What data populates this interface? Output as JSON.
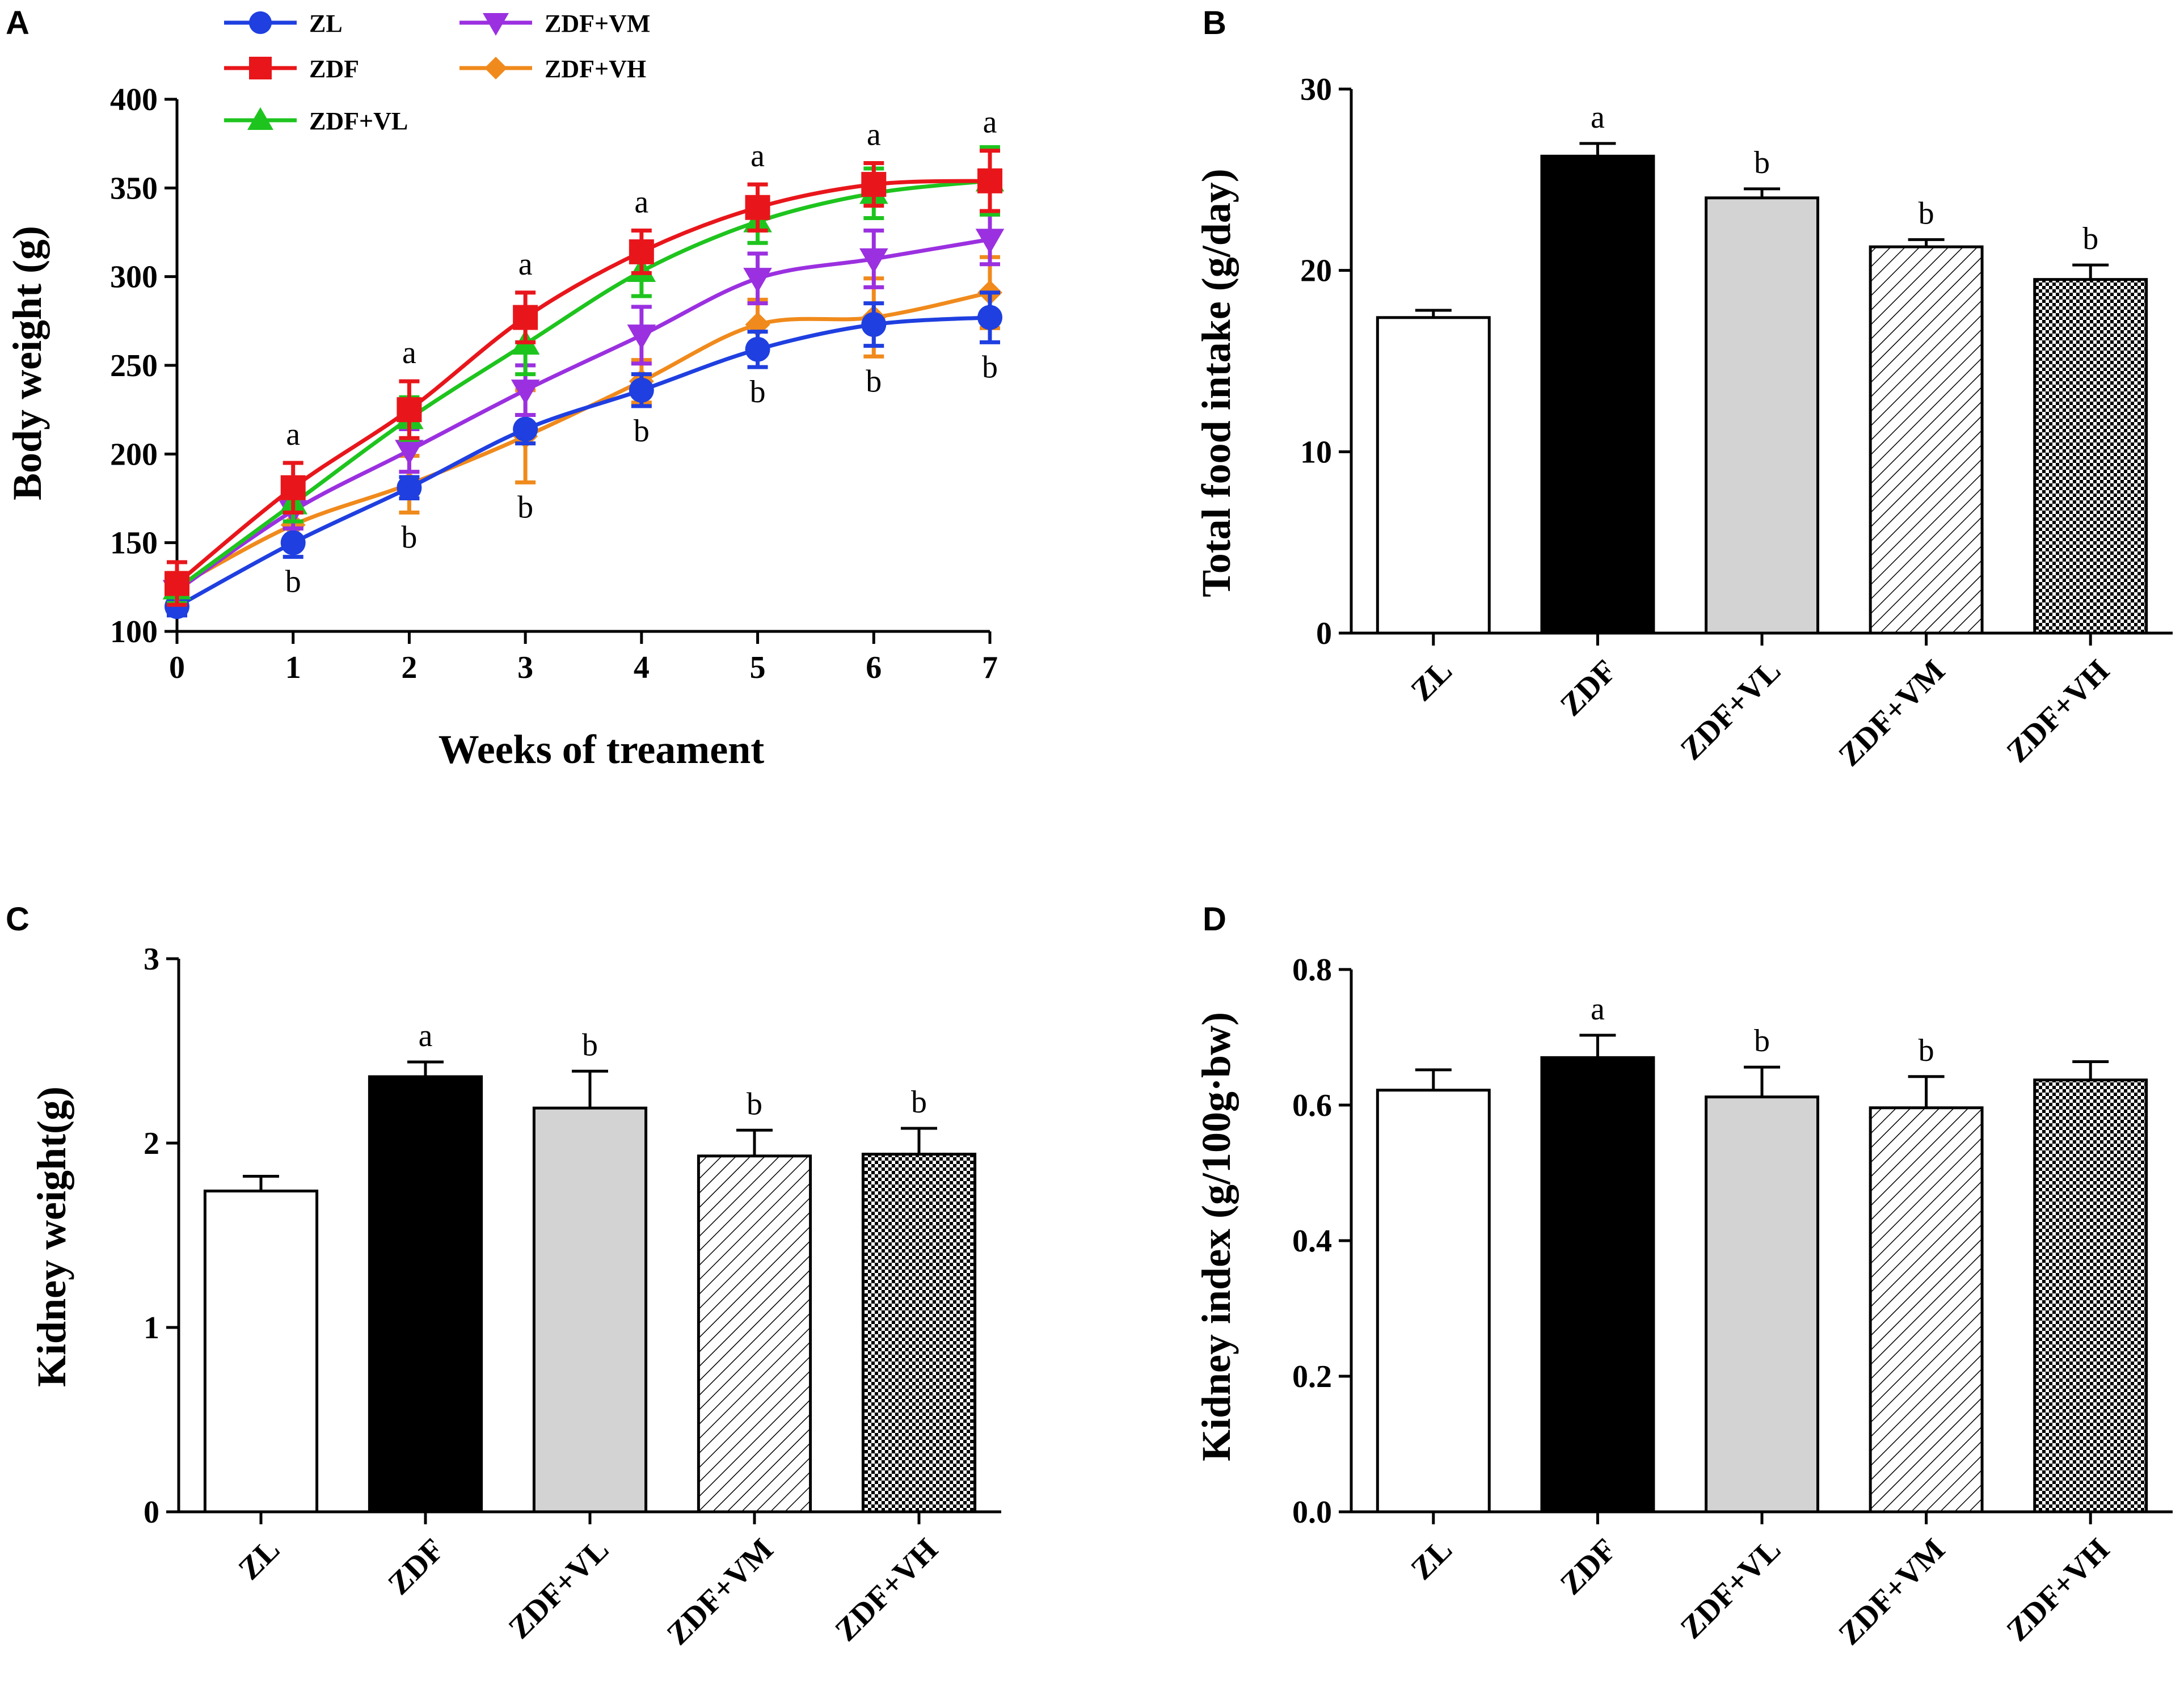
{
  "chart_data": [
    {
      "panel": "A",
      "type": "line",
      "title": "",
      "xlabel": "Weeks of treament",
      "ylabel": "Body weight (g)",
      "x": [
        0,
        1,
        2,
        3,
        4,
        5,
        6,
        7
      ],
      "xlim": [
        0,
        7
      ],
      "ylim": [
        100,
        400
      ],
      "yticks": [
        100,
        150,
        200,
        250,
        300,
        350,
        400
      ],
      "grid": false,
      "legend_position": "top-left",
      "series": [
        {
          "name": "ZL",
          "color": "#1f3fe0",
          "marker": "circle",
          "values": [
            114,
            150,
            181,
            214,
            236,
            259,
            273,
            277
          ],
          "errors": [
            5,
            8,
            6,
            8,
            9,
            10,
            12,
            14
          ]
        },
        {
          "name": "ZDF",
          "color": "#e8161b",
          "marker": "square",
          "values": [
            127,
            181,
            225,
            277,
            314,
            339,
            352,
            354
          ],
          "errors": [
            12,
            14,
            16,
            14,
            12,
            13,
            12,
            17
          ]
        },
        {
          "name": "ZDF+VL",
          "color": "#1ec41e",
          "marker": "triangle-up",
          "values": [
            124,
            172,
            220,
            262,
            303,
            331,
            347,
            354
          ],
          "errors": [
            8,
            10,
            12,
            17,
            14,
            12,
            14,
            19
          ]
        },
        {
          "name": "ZDF+VM",
          "color": "#9b30e0",
          "marker": "triangle-down",
          "values": [
            123,
            168,
            202,
            236,
            267,
            299,
            310,
            321
          ],
          "errors": [
            8,
            10,
            12,
            14,
            16,
            14,
            16,
            14
          ]
        },
        {
          "name": "ZDF+VH",
          "color": "#f08a1c",
          "marker": "diamond",
          "values": [
            125,
            160,
            183,
            210,
            241,
            273,
            277,
            291
          ],
          "errors": [
            8,
            10,
            16,
            26,
            12,
            14,
            22,
            20
          ]
        }
      ],
      "annotations": {
        "a_weeks": [
          1,
          2,
          3,
          4,
          5,
          6,
          7
        ],
        "b_weeks": [
          1,
          2,
          3,
          4,
          5,
          6,
          7
        ],
        "a_text": "a",
        "b_text": "b"
      }
    },
    {
      "panel": "B",
      "type": "bar",
      "title": "",
      "xlabel": "",
      "ylabel": "Total food intake (g/day)",
      "categories": [
        "ZL",
        "ZDF",
        "ZDF+VL",
        "ZDF+VM",
        "ZDF+VH"
      ],
      "values": [
        17.4,
        26.3,
        24.0,
        21.3,
        19.5
      ],
      "errors": [
        0.4,
        0.7,
        0.5,
        0.4,
        0.8
      ],
      "significance": [
        "",
        "a",
        "b",
        "b",
        "b"
      ],
      "fills": [
        "white",
        "black",
        "grey",
        "hatch",
        "checker"
      ],
      "ylim": [
        0,
        30
      ],
      "yticks": [
        0,
        10,
        20,
        30
      ],
      "tick_labels": [
        "0",
        "10",
        "20",
        "30"
      ],
      "grid": false
    },
    {
      "panel": "C",
      "type": "bar",
      "title": "",
      "xlabel": "",
      "ylabel": "Kidney weight(g)",
      "categories": [
        "ZL",
        "ZDF",
        "ZDF+VL",
        "ZDF+VM",
        "ZDF+VH"
      ],
      "values": [
        1.74,
        2.36,
        2.19,
        1.93,
        1.94
      ],
      "errors": [
        0.08,
        0.08,
        0.2,
        0.14,
        0.14
      ],
      "significance": [
        "",
        "a",
        "b",
        "b",
        "b"
      ],
      "fills": [
        "white",
        "black",
        "grey",
        "hatch",
        "checker"
      ],
      "ylim": [
        0,
        3
      ],
      "yticks": [
        0,
        1,
        2,
        3
      ],
      "tick_labels": [
        "0",
        "1",
        "2",
        "3"
      ],
      "grid": false
    },
    {
      "panel": "D",
      "type": "bar",
      "title": "",
      "xlabel": "",
      "ylabel": "Kidney index (g/100g·bw)",
      "categories": [
        "ZL",
        "ZDF",
        "ZDF+VL",
        "ZDF+VM",
        "ZDF+VH"
      ],
      "values": [
        0.622,
        0.67,
        0.612,
        0.596,
        0.637
      ],
      "errors": [
        0.03,
        0.033,
        0.044,
        0.046,
        0.027
      ],
      "significance": [
        "",
        "a",
        "b",
        "b",
        ""
      ],
      "fills": [
        "white",
        "black",
        "grey",
        "hatch",
        "checker"
      ],
      "ylim": [
        0,
        0.8
      ],
      "yticks": [
        0,
        0.2,
        0.4,
        0.6,
        0.8
      ],
      "tick_labels": [
        "0.0",
        "0.2",
        "0.4",
        "0.6",
        "0.8"
      ],
      "grid": false
    }
  ]
}
